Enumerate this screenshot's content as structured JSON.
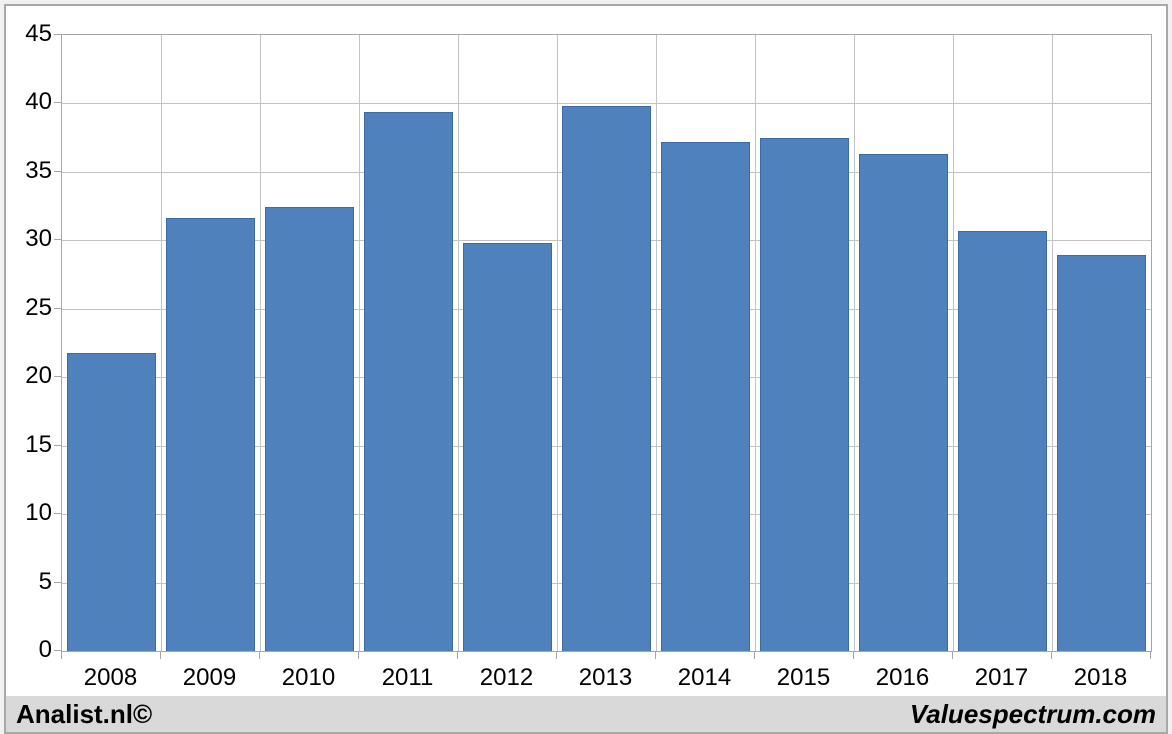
{
  "footer": {
    "left": "Analist.nl©",
    "right": "Valuespectrum.com"
  },
  "colors": {
    "bar": "#4f81bd",
    "bar_border": "#3e6aa3",
    "grid": "#c3c3c3",
    "axis": "#a6a6a6",
    "plot_bg": "#ffffff",
    "page_bg": "#f1f1f1",
    "card_border": "#a8a8a8",
    "footer_bg": "#d9d9d9",
    "text": "#000000"
  },
  "chart_data": {
    "type": "bar",
    "title": "",
    "xlabel": "",
    "ylabel": "",
    "categories": [
      "2008",
      "2009",
      "2010",
      "2011",
      "2012",
      "2013",
      "2014",
      "2015",
      "2016",
      "2017",
      "2018"
    ],
    "values": [
      21.8,
      31.6,
      32.4,
      39.4,
      29.8,
      39.8,
      37.2,
      37.5,
      36.3,
      30.7,
      28.9
    ],
    "ylim": [
      0,
      45
    ],
    "ytick_step": 5,
    "ytick_labels": [
      "0",
      "5",
      "10",
      "15",
      "20",
      "25",
      "30",
      "35",
      "40",
      "45"
    ],
    "grid": true,
    "legend": false,
    "bar_slot_fill": 0.89
  }
}
